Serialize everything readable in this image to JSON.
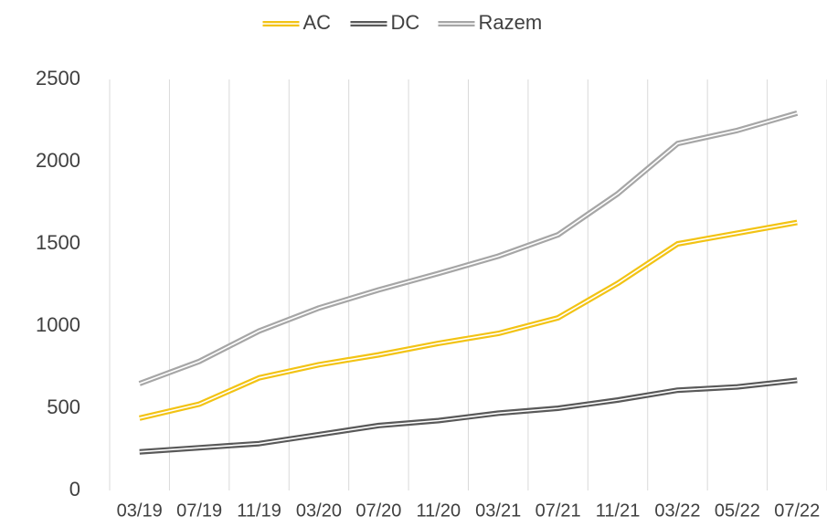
{
  "chart_data": {
    "type": "line",
    "categories": [
      "03/19",
      "07/19",
      "11/19",
      "03/20",
      "07/20",
      "11/20",
      "03/21",
      "07/21",
      "11/21",
      "03/22",
      "05/22",
      "07/22"
    ],
    "series": [
      {
        "name": "AC",
        "color": "#f2c314",
        "values": [
          440,
          525,
          685,
          765,
          825,
          895,
          955,
          1050,
          1260,
          1500,
          1565,
          1630
        ]
      },
      {
        "name": "DC",
        "color": "#595959",
        "values": [
          235,
          260,
          285,
          340,
          395,
          425,
          470,
          500,
          550,
          610,
          630,
          670
        ]
      },
      {
        "name": "Razem",
        "color": "#a6a6a6",
        "values": [
          650,
          785,
          970,
          1110,
          1220,
          1320,
          1425,
          1555,
          1805,
          2110,
          2190,
          2295
        ]
      }
    ],
    "ylim": [
      0,
      2500
    ],
    "yticks": [
      0,
      500,
      1000,
      1500,
      2000,
      2500
    ],
    "legend": "top",
    "grid": "vertical"
  }
}
